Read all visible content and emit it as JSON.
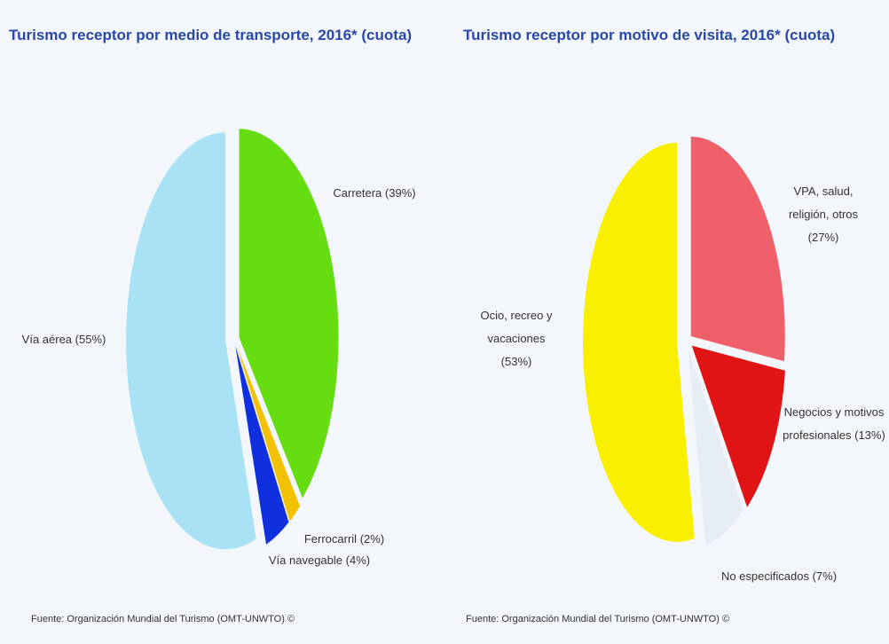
{
  "chart_data": [
    {
      "type": "pie",
      "title": "Turismo receptor por medio de transporte, 2016* (cuota)",
      "categories": [
        "Carretera",
        "Ferrocarril",
        "Vía navegable",
        "Vía aérea"
      ],
      "values": [
        39,
        2,
        4,
        55
      ],
      "value_labels": [
        "(39%)",
        "(2%)",
        "(4%)",
        "(55%)"
      ],
      "colors": [
        "#66dd11",
        "#f2c200",
        "#1030e0",
        "#a8e2f4"
      ],
      "source": "Fuente: Organización Mundial del Turismo (OMT-UNWTO) ©"
    },
    {
      "type": "pie",
      "title": "Turismo receptor por motivo de visita, 2016* (cuota)",
      "categories": [
        "VPA, salud, religión, otros",
        "Negocios y motivos profesionales",
        "No especificados",
        "Ocio, recreo y vacaciones"
      ],
      "values": [
        27,
        13,
        7,
        53
      ],
      "value_labels": [
        "(27%)",
        "(13%)",
        "(7%)",
        "(53%)"
      ],
      "colors": [
        "#f0606a",
        "#e01414",
        "#e6edf4",
        "#f8f000"
      ],
      "source": "Fuente: Organización Mundial del Turismo (OMT-UNWTO) ©"
    }
  ]
}
